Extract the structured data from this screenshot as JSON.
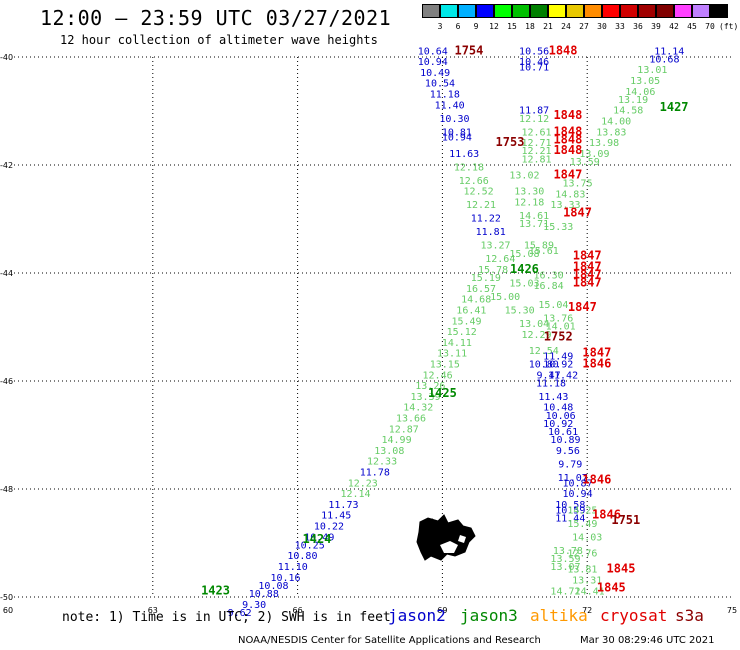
{
  "header": {
    "title": "12:00 – 23:59 UTC 03/27/2021",
    "subtitle": "12 hour collection of altimeter wave heights"
  },
  "legend_scale": {
    "labels": [
      "3",
      "6",
      "9",
      "12",
      "15",
      "18",
      "21",
      "24",
      "27",
      "30",
      "33",
      "36",
      "39",
      "42",
      "45",
      "70",
      "(ft)"
    ],
    "colors": [
      "#808080",
      "#00e8e8",
      "#00b0ff",
      "#0000ff",
      "#00ff00",
      "#00c000",
      "#008000",
      "#ffff00",
      "#e8c800",
      "#ff8c00",
      "#ff0000",
      "#d00000",
      "#a00000",
      "#800000",
      "#ff40ff",
      "#c080ff",
      "#000000"
    ]
  },
  "axes": {
    "lon_labels": [
      "60",
      "63",
      "66",
      "69",
      "72",
      "75"
    ],
    "lat_labels": [
      "-40",
      "-42",
      "-44",
      "-46",
      "-48",
      "-50"
    ]
  },
  "footer": {
    "note": "note: 1) Time is in UTC; 2) SWH is in feet",
    "satellites": [
      {
        "name": "jason2",
        "color": "#0000cc"
      },
      {
        "name": "jason3",
        "color": "#008800"
      },
      {
        "name": "altika",
        "color": "#ff9900"
      },
      {
        "name": "cryosat",
        "color": "#e00000"
      },
      {
        "name": "s3a",
        "color": "#8b0000"
      }
    ],
    "credit": "NOAA/NESDIS Center for Satellite Applications and Research",
    "timestamp": "Mar 30 08:29:46 UTC 2021"
  },
  "chart_data": {
    "type": "scatter",
    "xlim": [
      60,
      75
    ],
    "ylim": [
      -50,
      -40
    ],
    "time_labels": [
      {
        "text": "1754",
        "lon": 69.55,
        "lat": -39.95,
        "color": "#8b0000"
      },
      {
        "text": "1848",
        "lon": 71.5,
        "lat": -39.95,
        "color": "#e00000"
      },
      {
        "text": "1427",
        "lon": 73.8,
        "lat": -41.0,
        "color": "#008800"
      },
      {
        "text": "1848",
        "lon": 71.6,
        "lat": -41.15,
        "color": "#e00000"
      },
      {
        "text": "1848",
        "lon": 71.6,
        "lat": -41.45,
        "color": "#e00000"
      },
      {
        "text": "1848",
        "lon": 71.6,
        "lat": -41.6,
        "color": "#e00000"
      },
      {
        "text": "1848",
        "lon": 71.6,
        "lat": -41.8,
        "color": "#e00000"
      },
      {
        "text": "1753",
        "lon": 70.4,
        "lat": -41.65,
        "color": "#8b0000"
      },
      {
        "text": "1847",
        "lon": 71.6,
        "lat": -42.25,
        "color": "#e00000"
      },
      {
        "text": "1847",
        "lon": 71.8,
        "lat": -42.95,
        "color": "#e00000"
      },
      {
        "text": "1847",
        "lon": 72.0,
        "lat": -43.75,
        "color": "#e00000"
      },
      {
        "text": "1847",
        "lon": 72.0,
        "lat": -43.95,
        "color": "#e00000"
      },
      {
        "text": "1847",
        "lon": 72.0,
        "lat": -44.1,
        "color": "#e00000"
      },
      {
        "text": "1847",
        "lon": 72.0,
        "lat": -44.25,
        "color": "#e00000"
      },
      {
        "text": "1426",
        "lon": 70.7,
        "lat": -44.0,
        "color": "#008800"
      },
      {
        "text": "1847",
        "lon": 71.9,
        "lat": -44.7,
        "color": "#e00000"
      },
      {
        "text": "1752",
        "lon": 71.4,
        "lat": -45.25,
        "color": "#8b0000"
      },
      {
        "text": "1847",
        "lon": 72.2,
        "lat": -45.55,
        "color": "#e00000"
      },
      {
        "text": "1846",
        "lon": 72.2,
        "lat": -45.75,
        "color": "#e00000"
      },
      {
        "text": "1425",
        "lon": 69.0,
        "lat": -46.3,
        "color": "#008800"
      },
      {
        "text": "1846",
        "lon": 72.2,
        "lat": -47.9,
        "color": "#e00000"
      },
      {
        "text": "1846",
        "lon": 72.4,
        "lat": -48.55,
        "color": "#e00000"
      },
      {
        "text": "1751",
        "lon": 72.8,
        "lat": -48.65,
        "color": "#8b0000"
      },
      {
        "text": "1424",
        "lon": 66.4,
        "lat": -49.0,
        "color": "#008800"
      },
      {
        "text": "1845",
        "lon": 72.7,
        "lat": -49.55,
        "color": "#e00000"
      },
      {
        "text": "1845",
        "lon": 72.5,
        "lat": -49.9,
        "color": "#e00000"
      },
      {
        "text": "1423",
        "lon": 64.3,
        "lat": -49.95,
        "color": "#008800"
      }
    ],
    "points": [
      {
        "text": "10.64",
        "lon": 68.8,
        "lat": -39.95,
        "color": "#0000cc"
      },
      {
        "text": "10.94",
        "lon": 68.8,
        "lat": -40.15,
        "color": "#0000cc"
      },
      {
        "text": "10.49",
        "lon": 68.85,
        "lat": -40.35,
        "color": "#0000cc"
      },
      {
        "text": "10.54",
        "lon": 68.95,
        "lat": -40.55,
        "color": "#0000cc"
      },
      {
        "text": "11.18",
        "lon": 69.05,
        "lat": -40.75,
        "color": "#0000cc"
      },
      {
        "text": "11.40",
        "lon": 69.15,
        "lat": -40.95,
        "color": "#0000cc"
      },
      {
        "text": "10.30",
        "lon": 69.25,
        "lat": -41.2,
        "color": "#0000cc"
      },
      {
        "text": "10.81",
        "lon": 69.3,
        "lat": -41.45,
        "color": "#0000cc"
      },
      {
        "text": "10.94",
        "lon": 69.3,
        "lat": -41.55,
        "color": "#0000cc"
      },
      {
        "text": "11.63",
        "lon": 69.45,
        "lat": -41.85,
        "color": "#0000cc"
      },
      {
        "text": "12.18",
        "lon": 69.55,
        "lat": -42.1,
        "color": "#66cc66"
      },
      {
        "text": "12.66",
        "lon": 69.65,
        "lat": -42.35,
        "color": "#66cc66"
      },
      {
        "text": "12.52",
        "lon": 69.75,
        "lat": -42.55,
        "color": "#66cc66"
      },
      {
        "text": "12.21",
        "lon": 69.8,
        "lat": -42.8,
        "color": "#66cc66"
      },
      {
        "text": "11.22",
        "lon": 69.9,
        "lat": -43.05,
        "color": "#0000cc"
      },
      {
        "text": "11.81",
        "lon": 70.0,
        "lat": -43.3,
        "color": "#0000cc"
      },
      {
        "text": "13.27",
        "lon": 70.1,
        "lat": -43.55,
        "color": "#66cc66"
      },
      {
        "text": "12.64",
        "lon": 70.2,
        "lat": -43.8,
        "color": "#66cc66"
      },
      {
        "text": "15.78",
        "lon": 70.05,
        "lat": -44.0,
        "color": "#66cc66"
      },
      {
        "text": "15.19",
        "lon": 69.9,
        "lat": -44.15,
        "color": "#66cc66"
      },
      {
        "text": "16.57",
        "lon": 69.8,
        "lat": -44.35,
        "color": "#66cc66"
      },
      {
        "text": "14.68",
        "lon": 69.7,
        "lat": -44.55,
        "color": "#66cc66"
      },
      {
        "text": "16.41",
        "lon": 69.6,
        "lat": -44.75,
        "color": "#66cc66"
      },
      {
        "text": "15.49",
        "lon": 69.5,
        "lat": -44.95,
        "color": "#66cc66"
      },
      {
        "text": "15.12",
        "lon": 69.4,
        "lat": -45.15,
        "color": "#66cc66"
      },
      {
        "text": "14.11",
        "lon": 69.3,
        "lat": -45.35,
        "color": "#66cc66"
      },
      {
        "text": "13.11",
        "lon": 69.2,
        "lat": -45.55,
        "color": "#66cc66"
      },
      {
        "text": "13.15",
        "lon": 69.05,
        "lat": -45.75,
        "color": "#66cc66"
      },
      {
        "text": "12.46",
        "lon": 68.9,
        "lat": -45.95,
        "color": "#66cc66"
      },
      {
        "text": "13.26",
        "lon": 68.75,
        "lat": -46.15,
        "color": "#66cc66"
      },
      {
        "text": "13.39",
        "lon": 68.65,
        "lat": -46.35,
        "color": "#66cc66"
      },
      {
        "text": "14.32",
        "lon": 68.5,
        "lat": -46.55,
        "color": "#66cc66"
      },
      {
        "text": "13.66",
        "lon": 68.35,
        "lat": -46.75,
        "color": "#66cc66"
      },
      {
        "text": "12.87",
        "lon": 68.2,
        "lat": -46.95,
        "color": "#66cc66"
      },
      {
        "text": "14.99",
        "lon": 68.05,
        "lat": -47.15,
        "color": "#66cc66"
      },
      {
        "text": "13.08",
        "lon": 67.9,
        "lat": -47.35,
        "color": "#66cc66"
      },
      {
        "text": "12.33",
        "lon": 67.75,
        "lat": -47.55,
        "color": "#66cc66"
      },
      {
        "text": "11.78",
        "lon": 67.6,
        "lat": -47.75,
        "color": "#0000cc"
      },
      {
        "text": "12.23",
        "lon": 67.35,
        "lat": -47.95,
        "color": "#66cc66"
      },
      {
        "text": "12.14",
        "lon": 67.2,
        "lat": -48.15,
        "color": "#66cc66"
      },
      {
        "text": "11.73",
        "lon": 66.95,
        "lat": -48.35,
        "color": "#0000cc"
      },
      {
        "text": "11.45",
        "lon": 66.8,
        "lat": -48.55,
        "color": "#0000cc"
      },
      {
        "text": "10.22",
        "lon": 66.65,
        "lat": -48.75,
        "color": "#0000cc"
      },
      {
        "text": "10.49",
        "lon": 66.45,
        "lat": -48.95,
        "color": "#0000cc"
      },
      {
        "text": "10.25",
        "lon": 66.25,
        "lat": -49.1,
        "color": "#0000cc"
      },
      {
        "text": "10.80",
        "lon": 66.1,
        "lat": -49.3,
        "color": "#0000cc"
      },
      {
        "text": "11.10",
        "lon": 65.9,
        "lat": -49.5,
        "color": "#0000cc"
      },
      {
        "text": "10.16",
        "lon": 65.75,
        "lat": -49.7,
        "color": "#0000cc"
      },
      {
        "text": "10.08",
        "lon": 65.5,
        "lat": -49.85,
        "color": "#0000cc"
      },
      {
        "text": "10.88",
        "lon": 65.3,
        "lat": -50.0,
        "color": "#0000cc"
      },
      {
        "text": "9.30",
        "lon": 65.1,
        "lat": -50.2,
        "color": "#0000cc"
      },
      {
        "text": "9.62",
        "lon": 64.8,
        "lat": -50.35,
        "color": "#0000cc"
      },
      {
        "text": "10.56",
        "lon": 70.9,
        "lat": -39.95,
        "color": "#0000cc"
      },
      {
        "text": "10.46",
        "lon": 70.9,
        "lat": -40.15,
        "color": "#0000cc"
      },
      {
        "text": "10.71",
        "lon": 70.9,
        "lat": -40.25,
        "color": "#0000cc"
      },
      {
        "text": "11.87",
        "lon": 70.9,
        "lat": -41.05,
        "color": "#0000cc"
      },
      {
        "text": "12.12",
        "lon": 70.9,
        "lat": -41.2,
        "color": "#66cc66"
      },
      {
        "text": "12.61",
        "lon": 70.95,
        "lat": -41.45,
        "color": "#66cc66"
      },
      {
        "text": "12.71",
        "lon": 70.95,
        "lat": -41.65,
        "color": "#66cc66"
      },
      {
        "text": "12.21",
        "lon": 70.95,
        "lat": -41.8,
        "color": "#66cc66"
      },
      {
        "text": "12.81",
        "lon": 70.95,
        "lat": -41.95,
        "color": "#66cc66"
      },
      {
        "text": "13.02",
        "lon": 70.7,
        "lat": -42.25,
        "color": "#66cc66"
      },
      {
        "text": "13.30",
        "lon": 70.8,
        "lat": -42.55,
        "color": "#66cc66"
      },
      {
        "text": "12.18",
        "lon": 70.8,
        "lat": -42.75,
        "color": "#66cc66"
      },
      {
        "text": "14.61",
        "lon": 70.9,
        "lat": -43.0,
        "color": "#66cc66"
      },
      {
        "text": "13.71",
        "lon": 70.9,
        "lat": -43.15,
        "color": "#66cc66"
      },
      {
        "text": "15.61",
        "lon": 71.1,
        "lat": -43.65,
        "color": "#66cc66"
      },
      {
        "text": "15.89",
        "lon": 71.0,
        "lat": -43.55,
        "color": "#66cc66"
      },
      {
        "text": "15.08",
        "lon": 70.7,
        "lat": -43.7,
        "color": "#66cc66"
      },
      {
        "text": "16.30",
        "lon": 71.2,
        "lat": -44.1,
        "color": "#66cc66"
      },
      {
        "text": "16.84",
        "lon": 71.2,
        "lat": -44.3,
        "color": "#66cc66"
      },
      {
        "text": "15.03",
        "lon": 70.7,
        "lat": -44.25,
        "color": "#66cc66"
      },
      {
        "text": "15.00",
        "lon": 70.3,
        "lat": -44.5,
        "color": "#66cc66"
      },
      {
        "text": "15.04",
        "lon": 71.3,
        "lat": -44.65,
        "color": "#66cc66"
      },
      {
        "text": "15.30",
        "lon": 70.6,
        "lat": -44.75,
        "color": "#66cc66"
      },
      {
        "text": "13.76",
        "lon": 71.4,
        "lat": -44.9,
        "color": "#66cc66"
      },
      {
        "text": "13.04",
        "lon": 70.9,
        "lat": -45.0,
        "color": "#66cc66"
      },
      {
        "text": "14.01",
        "lon": 71.45,
        "lat": -45.05,
        "color": "#66cc66"
      },
      {
        "text": "12.29",
        "lon": 70.95,
        "lat": -45.2,
        "color": "#66cc66"
      },
      {
        "text": "12.54",
        "lon": 71.1,
        "lat": -45.5,
        "color": "#66cc66"
      },
      {
        "text": "11.49",
        "lon": 71.4,
        "lat": -45.6,
        "color": "#0000cc"
      },
      {
        "text": "10.80",
        "lon": 71.1,
        "lat": -45.75,
        "color": "#0000cc"
      },
      {
        "text": "10.92",
        "lon": 71.4,
        "lat": -45.75,
        "color": "#0000cc"
      },
      {
        "text": "9.47",
        "lon": 71.2,
        "lat": -45.95,
        "color": "#0000cc"
      },
      {
        "text": "11.42",
        "lon": 71.5,
        "lat": -45.95,
        "color": "#0000cc"
      },
      {
        "text": "11.18",
        "lon": 71.25,
        "lat": -46.1,
        "color": "#0000cc"
      },
      {
        "text": "11.43",
        "lon": 71.3,
        "lat": -46.35,
        "color": "#0000cc"
      },
      {
        "text": "10.48",
        "lon": 71.4,
        "lat": -46.55,
        "color": "#0000cc"
      },
      {
        "text": "10.06",
        "lon": 71.45,
        "lat": -46.7,
        "color": "#0000cc"
      },
      {
        "text": "10.92",
        "lon": 71.4,
        "lat": -46.85,
        "color": "#0000cc"
      },
      {
        "text": "10.61",
        "lon": 71.5,
        "lat": -47.0,
        "color": "#0000cc"
      },
      {
        "text": "10.89",
        "lon": 71.55,
        "lat": -47.15,
        "color": "#0000cc"
      },
      {
        "text": "9.56",
        "lon": 71.6,
        "lat": -47.35,
        "color": "#0000cc"
      },
      {
        "text": "9.79",
        "lon": 71.65,
        "lat": -47.6,
        "color": "#0000cc"
      },
      {
        "text": "11.07",
        "lon": 71.7,
        "lat": -47.85,
        "color": "#0000cc"
      },
      {
        "text": "10.87",
        "lon": 71.8,
        "lat": -47.95,
        "color": "#0000cc"
      },
      {
        "text": "10.94",
        "lon": 71.8,
        "lat": -48.15,
        "color": "#0000cc"
      },
      {
        "text": "10.58",
        "lon": 71.65,
        "lat": -48.35,
        "color": "#0000cc"
      },
      {
        "text": "10.59",
        "lon": 71.65,
        "lat": -48.45,
        "color": "#0000cc"
      },
      {
        "text": "14.25",
        "lon": 71.9,
        "lat": -48.45,
        "color": "#66cc66"
      },
      {
        "text": "11.44",
        "lon": 71.65,
        "lat": -48.6,
        "color": "#0000cc"
      },
      {
        "text": "15.49",
        "lon": 71.9,
        "lat": -48.7,
        "color": "#66cc66"
      },
      {
        "text": "14.03",
        "lon": 72.0,
        "lat": -48.95,
        "color": "#66cc66"
      },
      {
        "text": "13.78",
        "lon": 71.6,
        "lat": -49.2,
        "color": "#66cc66"
      },
      {
        "text": "12.76",
        "lon": 71.9,
        "lat": -49.25,
        "color": "#66cc66"
      },
      {
        "text": "13.59",
        "lon": 71.55,
        "lat": -49.35,
        "color": "#66cc66"
      },
      {
        "text": "13.07",
        "lon": 71.55,
        "lat": -49.5,
        "color": "#66cc66"
      },
      {
        "text": "13.81",
        "lon": 71.9,
        "lat": -49.55,
        "color": "#66cc66"
      },
      {
        "text": "13.31",
        "lon": 72.0,
        "lat": -49.75,
        "color": "#66cc66"
      },
      {
        "text": "14.72",
        "lon": 71.55,
        "lat": -49.95,
        "color": "#66cc66"
      },
      {
        "text": "14.41",
        "lon": 72.05,
        "lat": -49.95,
        "color": "#66cc66"
      },
      {
        "text": "11.14",
        "lon": 73.7,
        "lat": -39.95,
        "color": "#0000cc"
      },
      {
        "text": "10.68",
        "lon": 73.6,
        "lat": -40.1,
        "color": "#0000cc"
      },
      {
        "text": "13.01",
        "lon": 73.35,
        "lat": -40.3,
        "color": "#66cc66"
      },
      {
        "text": "13.05",
        "lon": 73.2,
        "lat": -40.5,
        "color": "#66cc66"
      },
      {
        "text": "14.06",
        "lon": 73.1,
        "lat": -40.7,
        "color": "#66cc66"
      },
      {
        "text": "13.19",
        "lon": 72.95,
        "lat": -40.85,
        "color": "#66cc66"
      },
      {
        "text": "14.58",
        "lon": 72.85,
        "lat": -41.05,
        "color": "#66cc66"
      },
      {
        "text": "14.00",
        "lon": 72.6,
        "lat": -41.25,
        "color": "#66cc66"
      },
      {
        "text": "13.83",
        "lon": 72.5,
        "lat": -41.45,
        "color": "#66cc66"
      },
      {
        "text": "13.98",
        "lon": 72.35,
        "lat": -41.65,
        "color": "#66cc66"
      },
      {
        "text": "13.09",
        "lon": 72.15,
        "lat": -41.85,
        "color": "#66cc66"
      },
      {
        "text": "13.59",
        "lon": 71.95,
        "lat": -42.0,
        "color": "#66cc66"
      },
      {
        "text": "13.75",
        "lon": 71.8,
        "lat": -42.4,
        "color": "#66cc66"
      },
      {
        "text": "14.83",
        "lon": 71.65,
        "lat": -42.6,
        "color": "#66cc66"
      },
      {
        "text": "13.33",
        "lon": 71.55,
        "lat": -42.8,
        "color": "#66cc66"
      },
      {
        "text": "15.33",
        "lon": 71.4,
        "lat": -43.2,
        "color": "#66cc66"
      }
    ]
  }
}
